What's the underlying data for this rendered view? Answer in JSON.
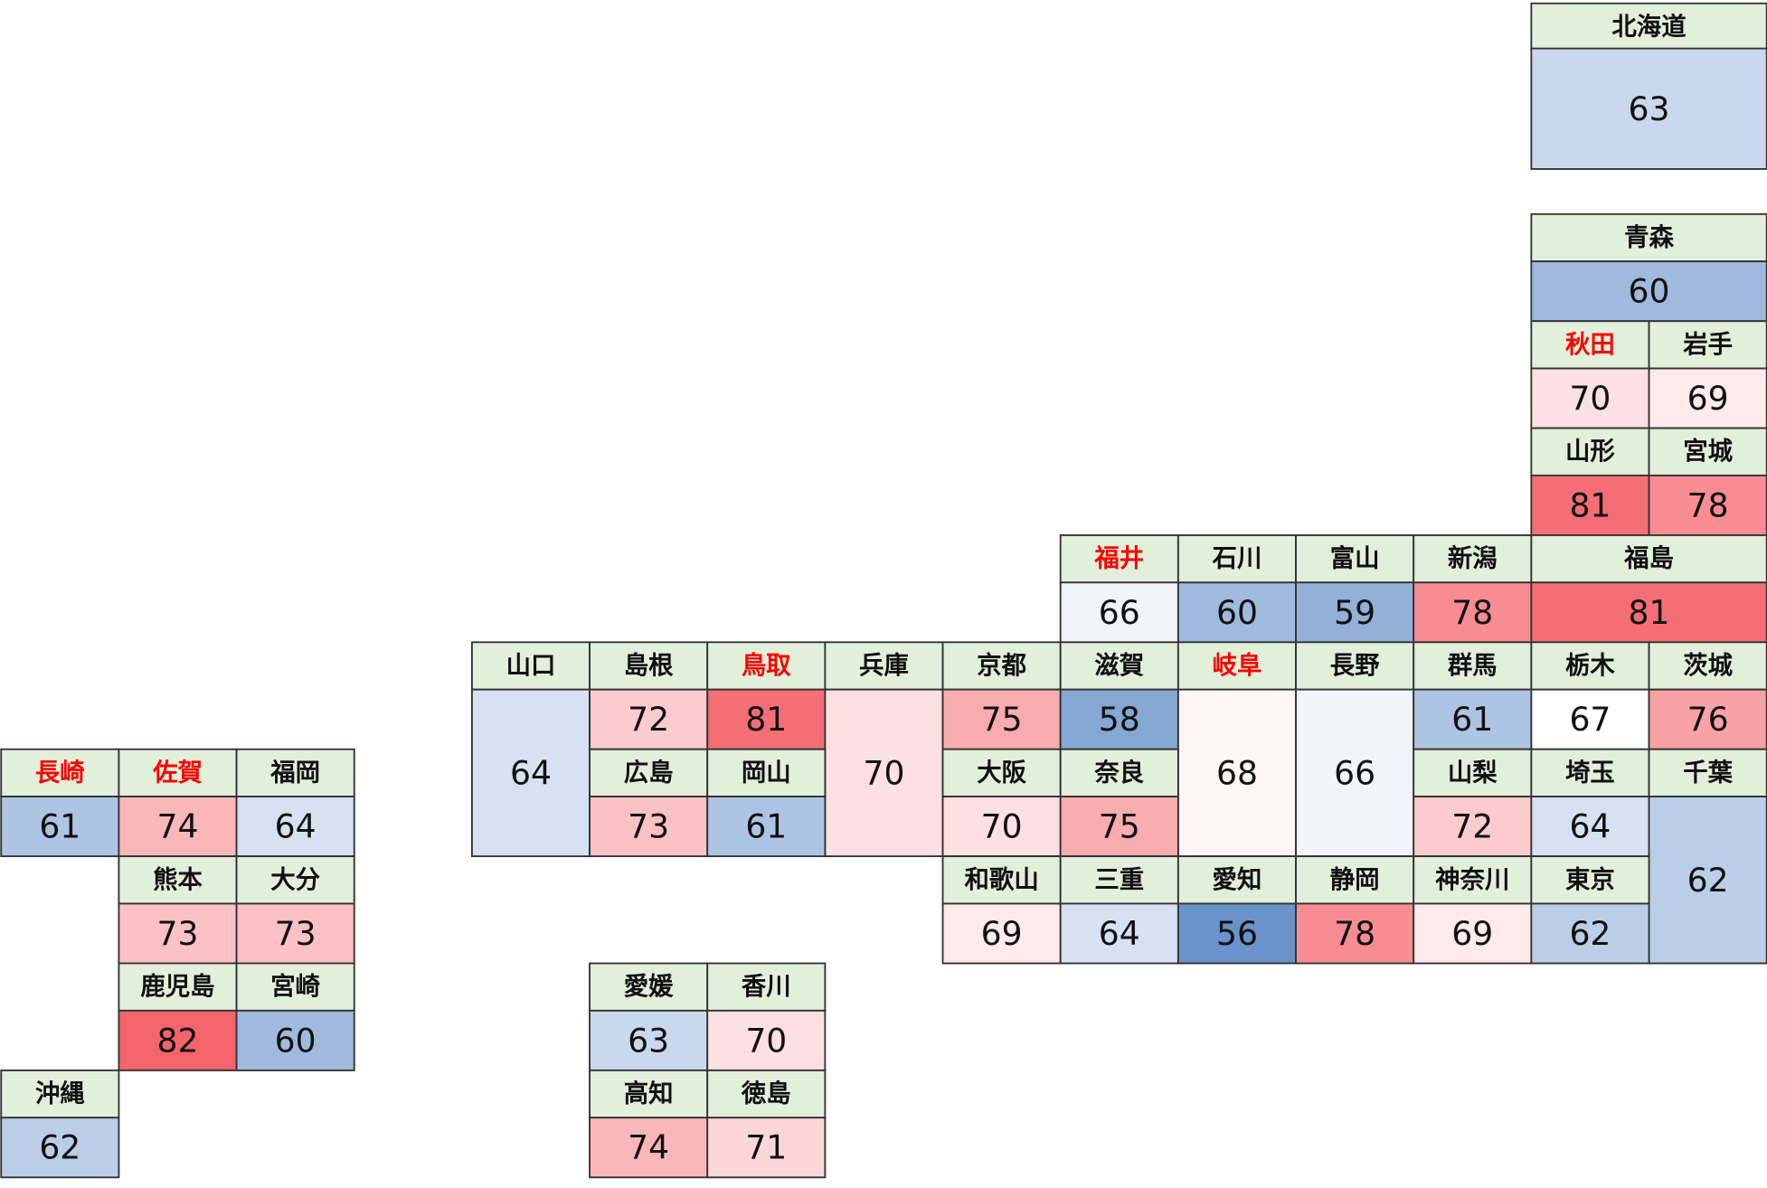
{
  "chart_data": {
    "type": "tile-map",
    "tiles": [
      {
        "name": "北海道",
        "value": 63
      },
      {
        "name": "青森",
        "value": 60
      },
      {
        "name": "秋田",
        "value": 70,
        "name_color": "#ff0000"
      },
      {
        "name": "岩手",
        "value": 69
      },
      {
        "name": "山形",
        "value": 81
      },
      {
        "name": "宮城",
        "value": 78
      },
      {
        "name": "福井",
        "value": 66,
        "name_color": "#ff0000"
      },
      {
        "name": "石川",
        "value": 60
      },
      {
        "name": "富山",
        "value": 59
      },
      {
        "name": "新潟",
        "value": 78
      },
      {
        "name": "福島",
        "value": 81
      },
      {
        "name": "山口",
        "value": 64
      },
      {
        "name": "島根",
        "value": 72
      },
      {
        "name": "鳥取",
        "value": 81,
        "name_color": "#ff0000"
      },
      {
        "name": "兵庫",
        "value": 70
      },
      {
        "name": "京都",
        "value": 75
      },
      {
        "name": "滋賀",
        "value": 58
      },
      {
        "name": "岐阜",
        "value": 68,
        "name_color": "#ff0000"
      },
      {
        "name": "長野",
        "value": 66
      },
      {
        "name": "群馬",
        "value": 61
      },
      {
        "name": "栃木",
        "value": 67
      },
      {
        "name": "茨城",
        "value": 76
      },
      {
        "name": "長崎",
        "value": 61,
        "name_color": "#ff0000"
      },
      {
        "name": "佐賀",
        "value": 74,
        "name_color": "#ff0000"
      },
      {
        "name": "福岡",
        "value": 64
      },
      {
        "name": "広島",
        "value": 73
      },
      {
        "name": "岡山",
        "value": 61
      },
      {
        "name": "大阪",
        "value": 70
      },
      {
        "name": "奈良",
        "value": 75
      },
      {
        "name": "山梨",
        "value": 72
      },
      {
        "name": "埼玉",
        "value": 64
      },
      {
        "name": "千葉",
        "value": 62
      },
      {
        "name": "熊本",
        "value": 73
      },
      {
        "name": "大分",
        "value": 73
      },
      {
        "name": "和歌山",
        "value": 69
      },
      {
        "name": "三重",
        "value": 64
      },
      {
        "name": "愛知",
        "value": 56
      },
      {
        "name": "静岡",
        "value": 78
      },
      {
        "name": "神奈川",
        "value": 69
      },
      {
        "name": "東京",
        "value": 62
      },
      {
        "name": "鹿児島",
        "value": 82
      },
      {
        "name": "宮崎",
        "value": 60
      },
      {
        "name": "愛媛",
        "value": 63
      },
      {
        "name": "香川",
        "value": 70
      },
      {
        "name": "沖縄",
        "value": 62
      },
      {
        "name": "高知",
        "value": 74
      },
      {
        "name": "徳島",
        "value": 71
      }
    ]
  }
}
